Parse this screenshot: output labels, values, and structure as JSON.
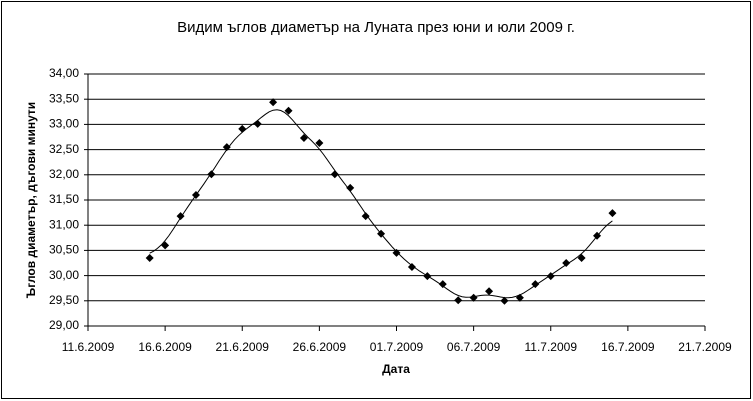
{
  "chart_data": {
    "type": "scatter",
    "title": "Видим ъглов диаметър на Луната през юни и юли 2009 г.",
    "x_label": "Дата",
    "y_label": "Ъглов диаметър, дъгови минути",
    "x": [
      "2009-06-15",
      "2009-06-16",
      "2009-06-17",
      "2009-06-18",
      "2009-06-19",
      "2009-06-20",
      "2009-06-21",
      "2009-06-22",
      "2009-06-23",
      "2009-06-24",
      "2009-06-25",
      "2009-06-26",
      "2009-06-27",
      "2009-06-28",
      "2009-06-29",
      "2009-06-30",
      "2009-07-01",
      "2009-07-02",
      "2009-07-03",
      "2009-07-04",
      "2009-07-05",
      "2009-07-06",
      "2009-07-07",
      "2009-07-08",
      "2009-07-09",
      "2009-07-10",
      "2009-07-11",
      "2009-07-12",
      "2009-07-13",
      "2009-07-14",
      "2009-07-15"
    ],
    "values": [
      30.35,
      30.6,
      31.18,
      31.6,
      32.01,
      32.55,
      32.91,
      33.01,
      33.44,
      33.27,
      32.73,
      32.63,
      32.01,
      31.74,
      31.18,
      30.83,
      30.45,
      30.17,
      29.99,
      29.83,
      29.51,
      29.56,
      29.69,
      29.5,
      29.56,
      29.83,
      29.99,
      30.25,
      30.35,
      30.79,
      31.24
    ],
    "color": "#000000",
    "trendline": true,
    "grid": true,
    "xlim": [
      "2009-06-11",
      "2009-07-21"
    ],
    "xticks": [
      {
        "value": "2009-06-11",
        "label": "11.6.2009"
      },
      {
        "value": "2009-06-16",
        "label": "16.6.2009"
      },
      {
        "value": "2009-06-21",
        "label": "21.6.2009"
      },
      {
        "value": "2009-06-26",
        "label": "26.6.2009"
      },
      {
        "value": "2009-07-01",
        "label": "01.7.2009"
      },
      {
        "value": "2009-07-06",
        "label": "06.7.2009"
      },
      {
        "value": "2009-07-11",
        "label": "11.7.2009"
      },
      {
        "value": "2009-07-16",
        "label": "16.7.2009"
      },
      {
        "value": "2009-07-21",
        "label": "21.7.2009"
      }
    ],
    "ylim": [
      29,
      34
    ],
    "yticks": [
      {
        "value": 29,
        "label": "29,00"
      },
      {
        "value": 29.5,
        "label": "29,50"
      },
      {
        "value": 30,
        "label": "30,00"
      },
      {
        "value": 30.5,
        "label": "30,50"
      },
      {
        "value": 31,
        "label": "31,00"
      },
      {
        "value": 31.5,
        "label": "31,50"
      },
      {
        "value": 32,
        "label": "32,00"
      },
      {
        "value": 32.5,
        "label": "32,50"
      },
      {
        "value": 33,
        "label": "33,00"
      },
      {
        "value": 33.5,
        "label": "33,50"
      },
      {
        "value": 34,
        "label": "34,00"
      }
    ]
  }
}
